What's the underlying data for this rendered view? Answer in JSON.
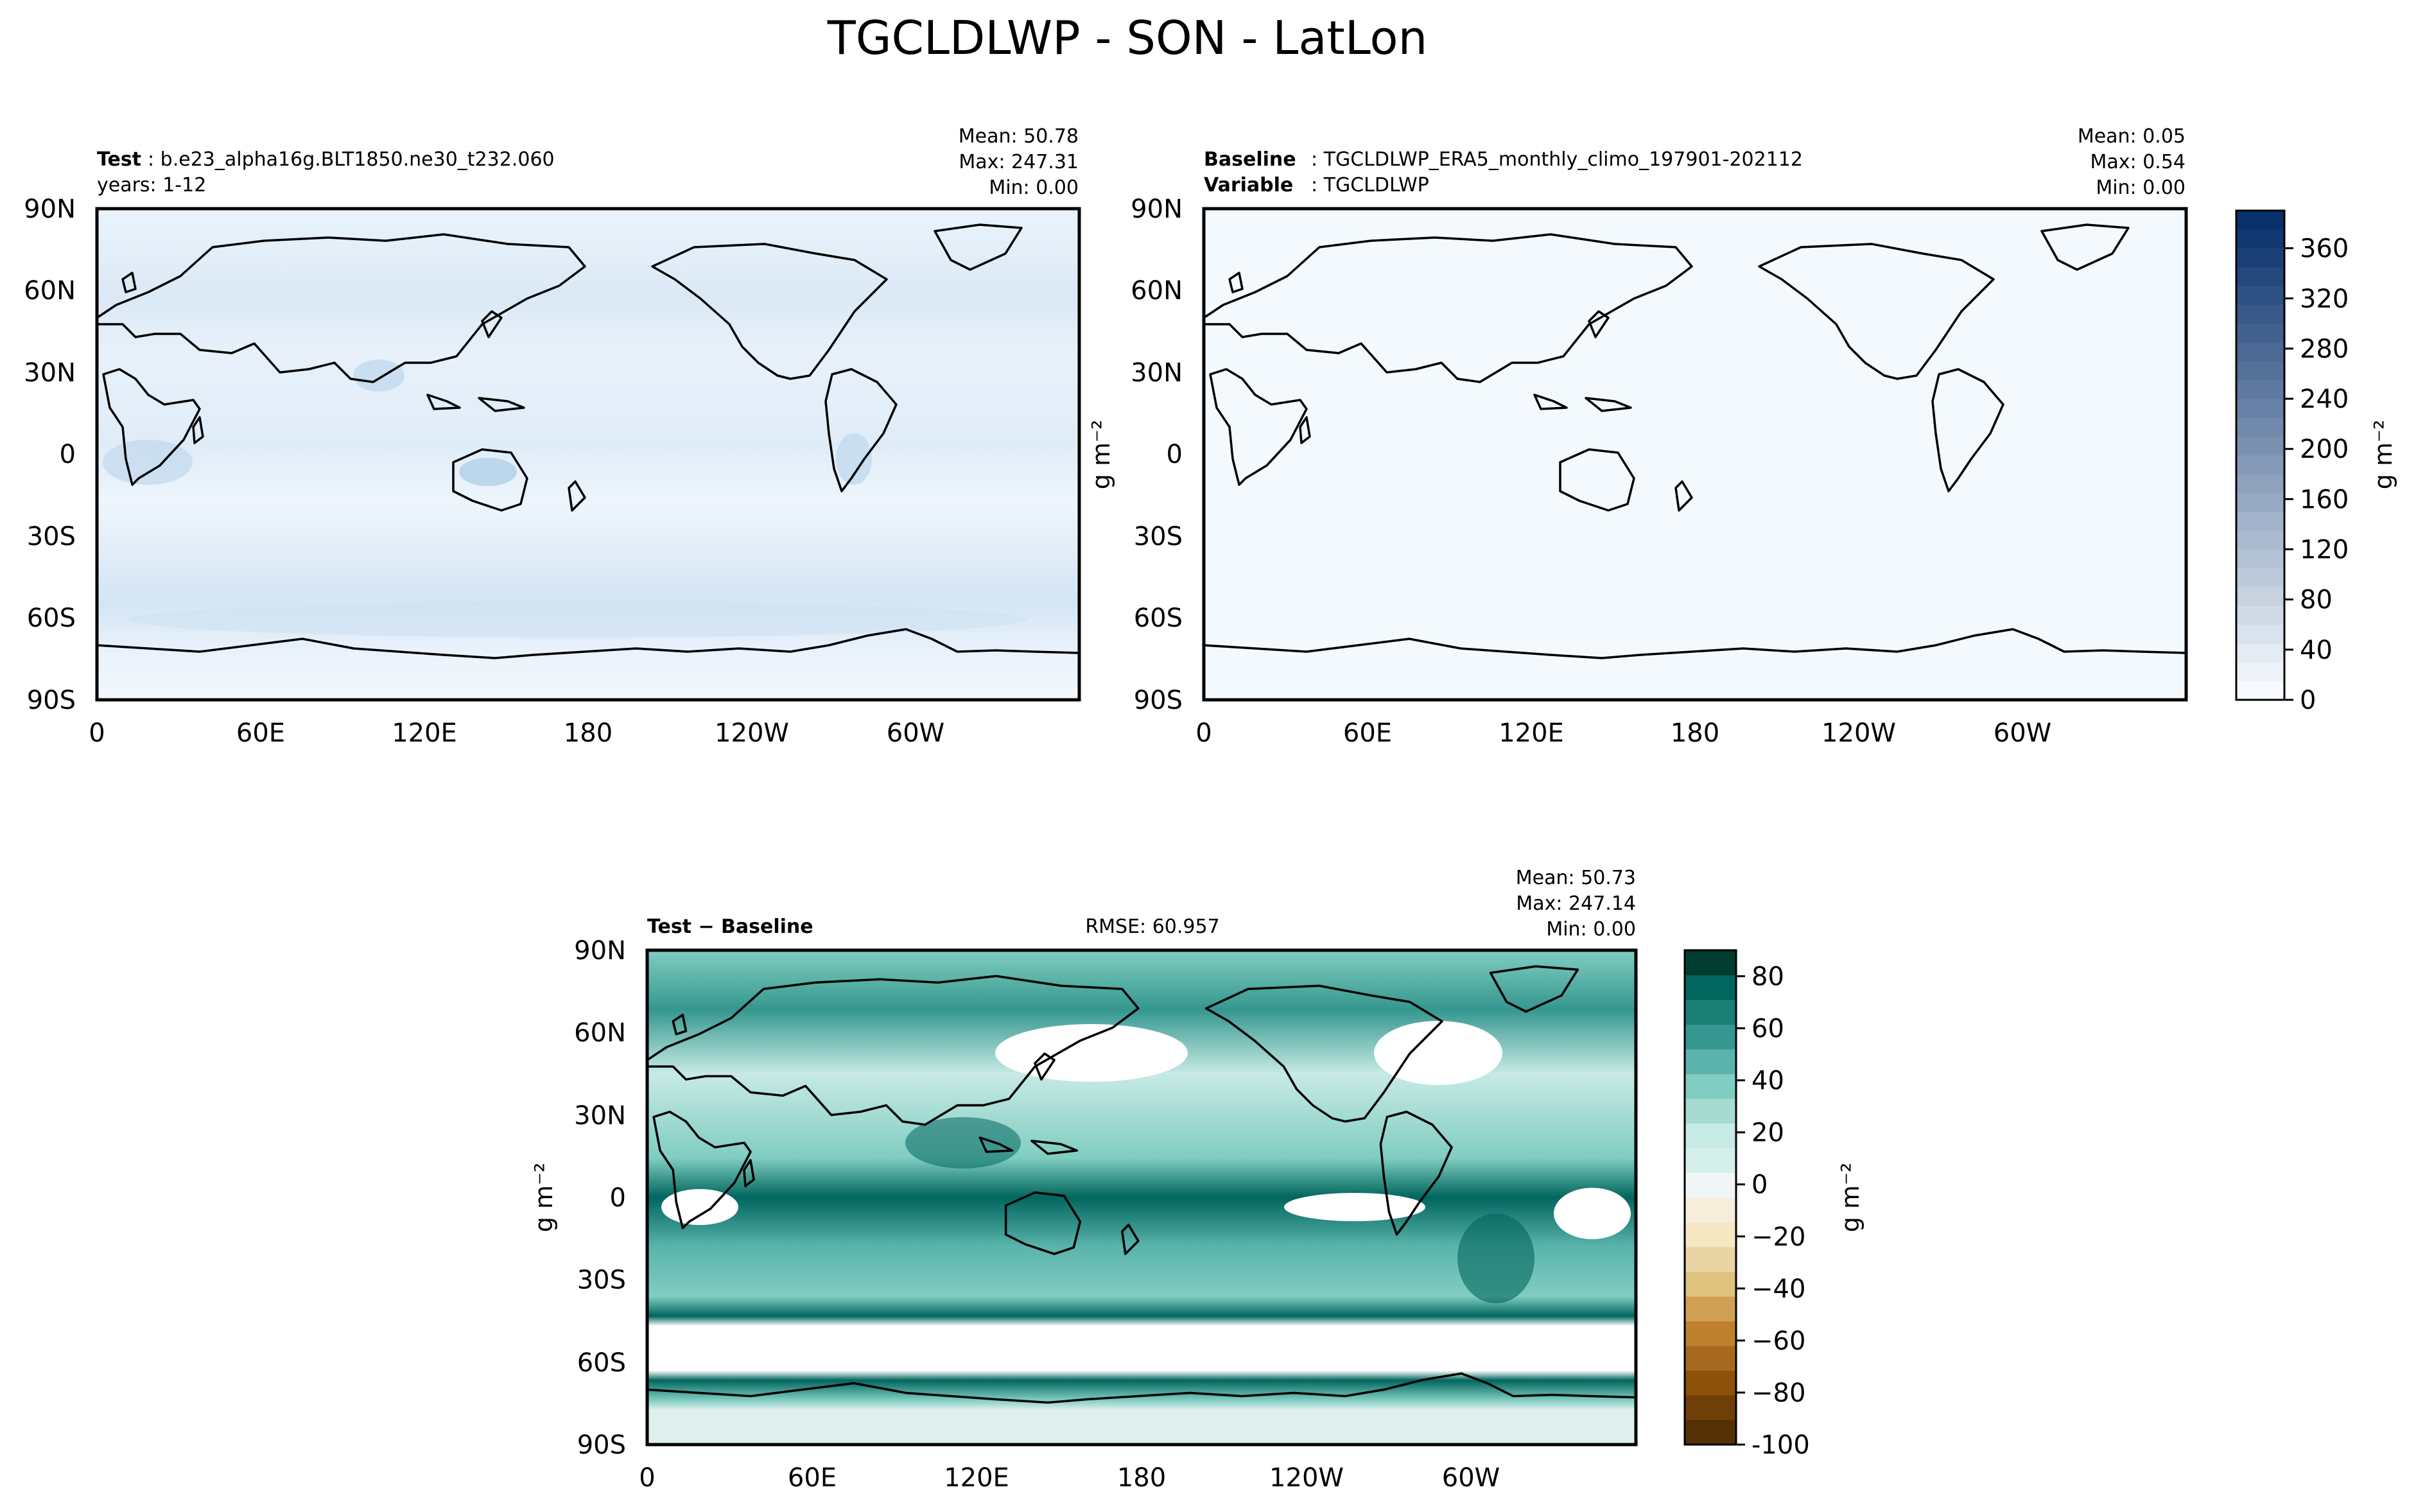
{
  "figure": {
    "title": "TGCLDLWP - SON - LatLon"
  },
  "panels": {
    "test": {
      "label": "Test",
      "case": "b.e23_alpha16g.BLT1850.ne30_t232.060",
      "years": "years: 1-12",
      "mean": "Mean: 50.78",
      "max": "Max: 247.31",
      "min": "Min:  0.00"
    },
    "baseline": {
      "label": "Baseline",
      "case": "TGCLDLWP_ERA5_monthly_climo_197901-202112",
      "variable_label": "Variable",
      "variable": "TGCLDLWP",
      "mean": "Mean:  0.05",
      "max": "Max:  0.54",
      "min": "Min:  0.00"
    },
    "diff": {
      "label": "Test − Baseline",
      "rmse": "RMSE: 60.957",
      "mean": "Mean: 50.73",
      "max": "Max: 247.14",
      "min": "Min:  0.00"
    }
  },
  "units": "g m⁻²",
  "colors": {
    "blues_low": "#f7fbff",
    "blues_high": "#08306b",
    "teal_high": "#003c30",
    "brown_low": "#543005",
    "coast": "#000000"
  },
  "chart_data": [
    {
      "type": "heatmap",
      "name": "test",
      "xlabel": "",
      "ylabel": "",
      "x_ticks": [
        "0",
        "60E",
        "120E",
        "180",
        "120W",
        "60W"
      ],
      "y_ticks": [
        "90S",
        "60S",
        "30S",
        "0",
        "30N",
        "60N",
        "90N"
      ],
      "zlim": [
        0,
        390
      ]
    },
    {
      "type": "heatmap",
      "name": "baseline",
      "xlabel": "",
      "ylabel": "",
      "x_ticks": [
        "0",
        "60E",
        "120E",
        "180",
        "120W",
        "60W"
      ],
      "y_ticks": [
        "90S",
        "60S",
        "30S",
        "0",
        "30N",
        "60N",
        "90N"
      ],
      "zlim": [
        0,
        390
      ],
      "colorbar_ticks": [
        "0",
        "40",
        "80",
        "120",
        "160",
        "200",
        "240",
        "280",
        "320",
        "360"
      ]
    },
    {
      "type": "heatmap",
      "name": "diff",
      "xlabel": "",
      "ylabel": "",
      "x_ticks": [
        "0",
        "60E",
        "120E",
        "180",
        "120W",
        "60W"
      ],
      "y_ticks": [
        "90S",
        "60S",
        "30S",
        "0",
        "30N",
        "60N",
        "90N"
      ],
      "zlim": [
        -100,
        90
      ],
      "colorbar_ticks": [
        "-100",
        "−80",
        "−60",
        "−40",
        "−20",
        "0",
        "20",
        "40",
        "60",
        "80"
      ]
    }
  ]
}
